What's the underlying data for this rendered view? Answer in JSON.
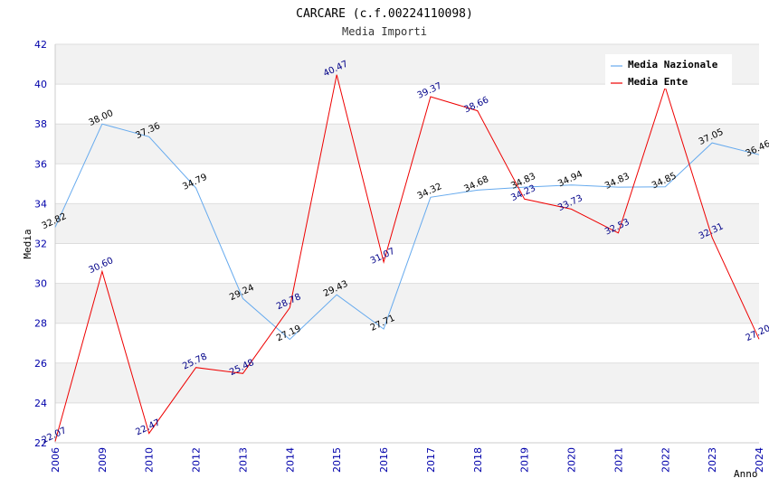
{
  "chart_data": {
    "type": "line",
    "title": "CARCARE (c.f.00224110098)",
    "subtitle": "Media Importi",
    "xlabel": "Anno",
    "ylabel": "Media",
    "ylim": [
      22,
      42
    ],
    "yticks": [
      "22",
      "24",
      "26",
      "28",
      "30",
      "32",
      "34",
      "36",
      "38",
      "40",
      "42"
    ],
    "grid": true,
    "legend_position": "top-right",
    "categories": [
      "2006",
      "2009",
      "2010",
      "2012",
      "2013",
      "2014",
      "2015",
      "2016",
      "2017",
      "2018",
      "2019",
      "2020",
      "2021",
      "2022",
      "2023",
      "2024"
    ],
    "series": [
      {
        "name": "Media Nazionale",
        "color": "#66aaee",
        "label_color": "#000000",
        "values": [
          32.82,
          38.0,
          37.36,
          34.79,
          29.24,
          27.19,
          29.43,
          27.71,
          34.32,
          34.68,
          34.83,
          34.94,
          34.83,
          34.85,
          37.05,
          36.46
        ],
        "labels": [
          "32.82",
          "38.00",
          "37.36",
          "34.79",
          "29.24",
          "27.19",
          "29.43",
          "27.71",
          "34.32",
          "34.68",
          "34.83",
          "34.94",
          "34.83",
          "34.85",
          "37.05",
          "36.46"
        ]
      },
      {
        "name": "Media Ente",
        "color": "#ee0000",
        "label_color": "#000088",
        "values": [
          22.07,
          30.6,
          22.47,
          25.78,
          25.48,
          28.78,
          40.47,
          31.07,
          39.37,
          38.66,
          34.23,
          33.73,
          32.53,
          39.85,
          32.31,
          27.2
        ],
        "labels": [
          "22.07",
          "30.60",
          "22.47",
          "25.78",
          "25.48",
          "28.78",
          "40.47",
          "31.07",
          "39.37",
          "38.66",
          "34.23",
          "33.73",
          "32.53",
          "",
          "32.31",
          "27.20"
        ]
      }
    ]
  }
}
